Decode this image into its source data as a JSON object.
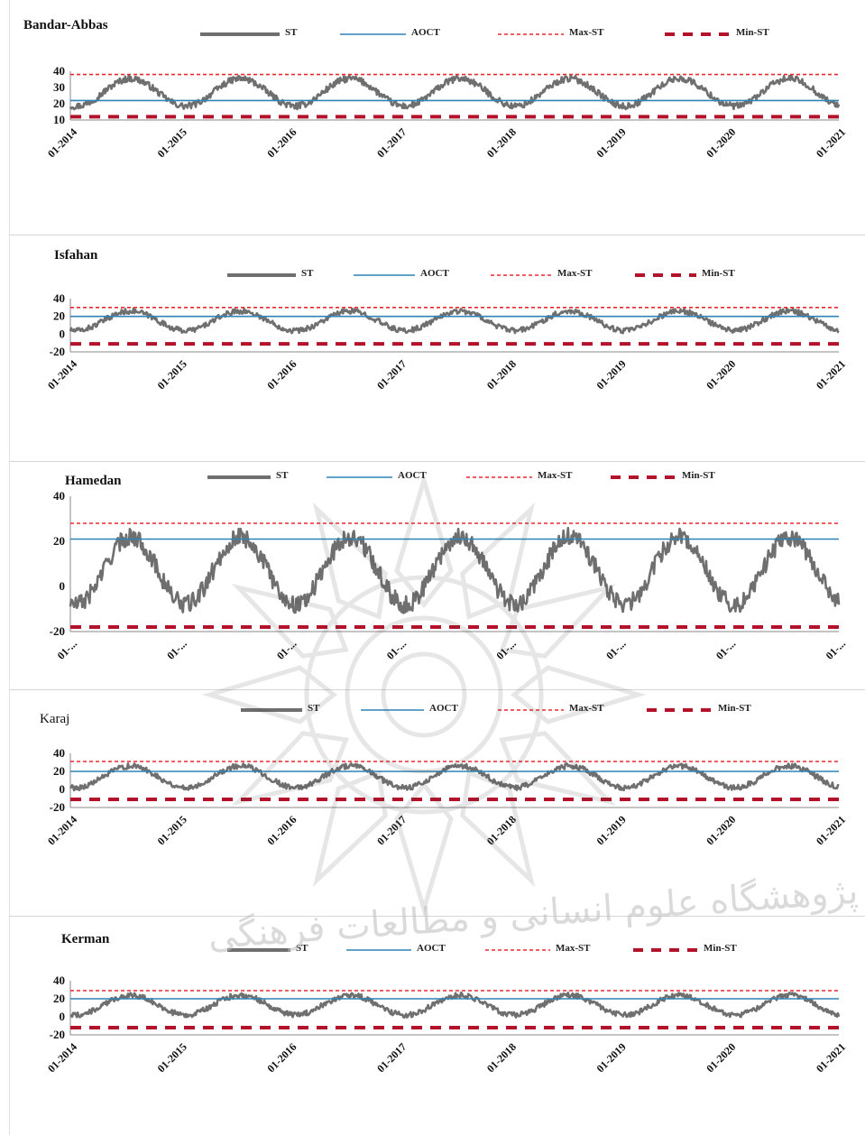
{
  "legend": {
    "st": "ST",
    "aoct": "AOCT",
    "max": "Max-ST",
    "min": "Min-ST"
  },
  "colors": {
    "st": "#6f6f6f",
    "aoct": "#2f83b5",
    "max": "#e8292e",
    "min": "#b3122a"
  },
  "chart_data": [
    {
      "type": "line",
      "title": "Bandar-Abbas",
      "x_range": [
        "01-2014",
        "01-2021"
      ],
      "xticks": [
        "01-2014",
        "01-2015",
        "01-2016",
        "01-2017",
        "01-2018",
        "01-2019",
        "01-2020",
        "01-2021"
      ],
      "ylim": [
        10,
        40
      ],
      "yticks": [
        "10",
        "20",
        "30",
        "40"
      ],
      "reference_lines": {
        "AOCT": 22,
        "Max-ST": 38,
        "Min-ST": 12
      },
      "st_seasonal": {
        "mean": 27,
        "amplitude": 8.5,
        "noise": 2
      },
      "series": [
        {
          "name": "ST"
        },
        {
          "name": "AOCT"
        },
        {
          "name": "Max-ST"
        },
        {
          "name": "Min-ST"
        }
      ]
    },
    {
      "type": "line",
      "title": "Isfahan",
      "x_range": [
        "01-2014",
        "01-2021"
      ],
      "xticks": [
        "01-2014",
        "01-2015",
        "01-2016",
        "01-2017",
        "01-2018",
        "01-2019",
        "01-2020",
        "01-2021"
      ],
      "ylim": [
        -20,
        40
      ],
      "yticks": [
        "-20",
        "0",
        "20",
        "40"
      ],
      "reference_lines": {
        "AOCT": 20,
        "Max-ST": 30,
        "Min-ST": -11
      },
      "st_seasonal": {
        "mean": 15,
        "amplitude": 11,
        "noise": 3
      },
      "series": [
        {
          "name": "ST"
        },
        {
          "name": "AOCT"
        },
        {
          "name": "Max-ST"
        },
        {
          "name": "Min-ST"
        }
      ]
    },
    {
      "type": "line",
      "title": "Hamedan",
      "x_range": [
        "01-2014",
        "01-2021"
      ],
      "xticks": [
        "01-...",
        "01-...",
        "01-...",
        "01-...",
        "01-...",
        "01-...",
        "01-...",
        "01-..."
      ],
      "ylim": [
        -20,
        40
      ],
      "yticks": [
        "-20",
        "0",
        "20",
        "40"
      ],
      "reference_lines": {
        "AOCT": 21,
        "Max-ST": 28,
        "Min-ST": -18
      },
      "st_seasonal": {
        "mean": 7,
        "amplitude": 15,
        "noise": 4
      },
      "series": [
        {
          "name": "ST"
        },
        {
          "name": "AOCT"
        },
        {
          "name": "Max-ST"
        },
        {
          "name": "Min-ST"
        }
      ]
    },
    {
      "type": "line",
      "title": "Karaj",
      "x_range": [
        "01-2014",
        "01-2021"
      ],
      "xticks": [
        "01-2014",
        "01-2015",
        "01-2016",
        "01-2017",
        "01-2018",
        "01-2019",
        "01-2020",
        "01-2021"
      ],
      "ylim": [
        -20,
        40
      ],
      "yticks": [
        "-20",
        "0",
        "20",
        "40"
      ],
      "reference_lines": {
        "AOCT": 20,
        "Max-ST": 31,
        "Min-ST": -11
      },
      "st_seasonal": {
        "mean": 14,
        "amplitude": 12,
        "noise": 3
      },
      "series": [
        {
          "name": "ST"
        },
        {
          "name": "AOCT"
        },
        {
          "name": "Max-ST"
        },
        {
          "name": "Min-ST"
        }
      ]
    },
    {
      "type": "line",
      "title": "Kerman",
      "x_range": [
        "01-2014",
        "01-2021"
      ],
      "xticks": [
        "01-2014",
        "01-2015",
        "01-2016",
        "01-2017",
        "01-2018",
        "01-2019",
        "01-2020",
        "01-2021"
      ],
      "ylim": [
        -20,
        40
      ],
      "yticks": [
        "-20",
        "0",
        "20",
        "40"
      ],
      "reference_lines": {
        "AOCT": 20,
        "Max-ST": 29,
        "Min-ST": -12
      },
      "st_seasonal": {
        "mean": 13,
        "amplitude": 11,
        "noise": 3
      },
      "series": [
        {
          "name": "ST"
        },
        {
          "name": "AOCT"
        },
        {
          "name": "Max-ST"
        },
        {
          "name": "Min-ST"
        }
      ]
    }
  ],
  "watermark": {
    "text": "پژوهشگاه علوم انسانی و مطالعات فرهنگی"
  }
}
